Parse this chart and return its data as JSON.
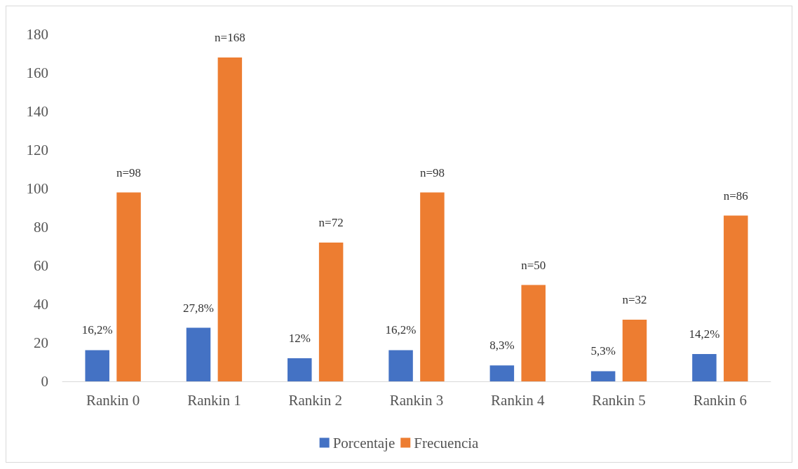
{
  "chart_data": {
    "type": "bar",
    "categories": [
      "Rankin 0",
      "Rankin 1",
      "Rankin 2",
      "Rankin 3",
      "Rankin 4",
      "Rankin 5",
      "Rankin 6"
    ],
    "series": [
      {
        "name": "Porcentaje",
        "color": "#4472c4",
        "values": [
          16.2,
          27.8,
          12,
          16.2,
          8.3,
          5.3,
          14.2
        ],
        "value_labels": [
          "16,2%",
          "27,8%",
          "12%",
          "16,2%",
          "8,3%",
          "5,3%",
          "14,2%"
        ]
      },
      {
        "name": "Frecuencia",
        "color": "#ed7d31",
        "values": [
          98,
          168,
          72,
          98,
          50,
          32,
          86
        ],
        "value_labels": [
          "n=98",
          "n=168",
          "n=72",
          "n=98",
          "n=50",
          "n=32",
          "n=86"
        ]
      }
    ],
    "ylim": [
      0,
      180
    ],
    "yticks": [
      0,
      20,
      40,
      60,
      80,
      100,
      120,
      140,
      160,
      180
    ],
    "grid": false,
    "legend": "bottom"
  }
}
